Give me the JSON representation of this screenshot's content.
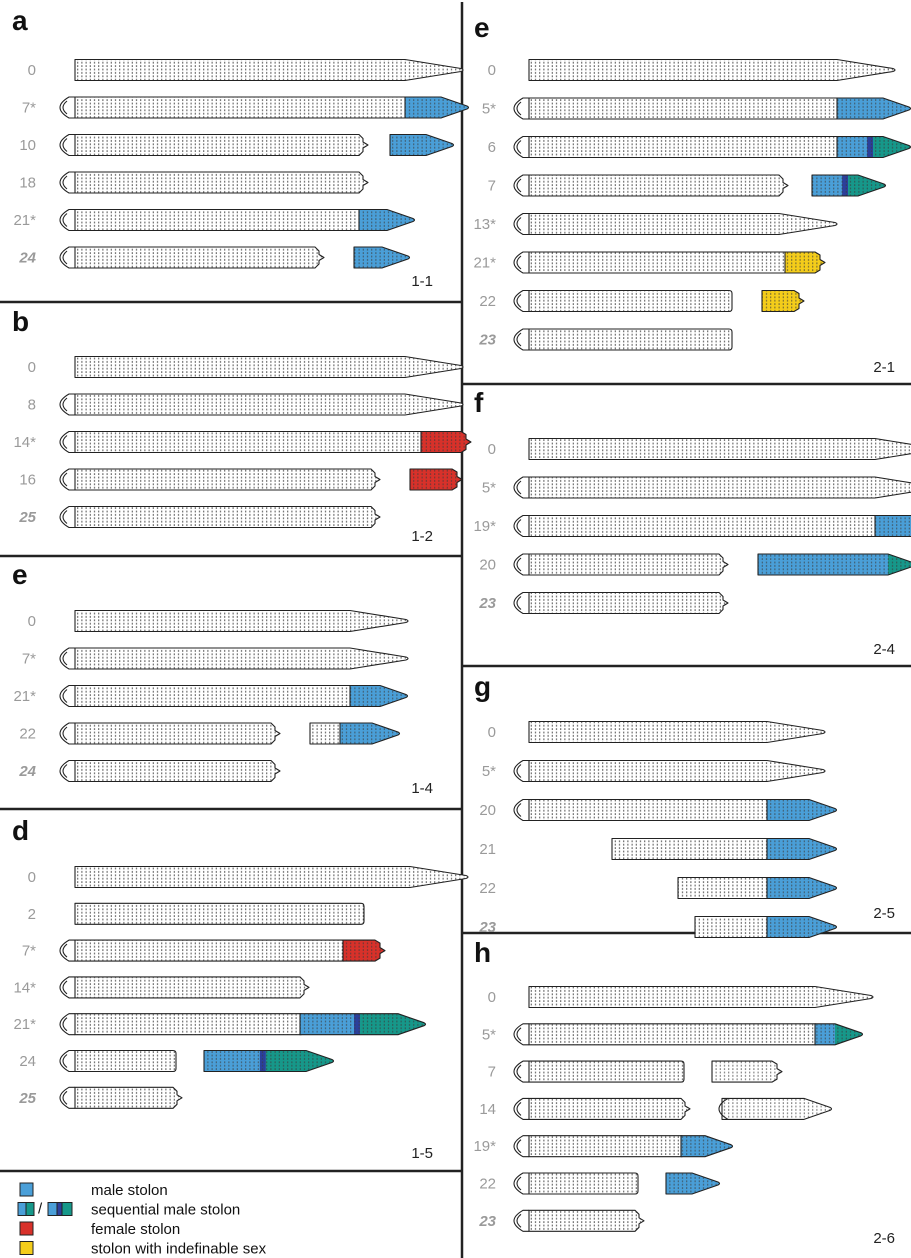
{
  "colors": {
    "male": "#4a9fd8",
    "male_dark": "#2b3f9b",
    "teal": "#16988a",
    "female": "#d8312a",
    "indefinable": "#f4cd1a",
    "outline": "#222222",
    "day_text": "#9a9a9a"
  },
  "panels": [
    {
      "letter": "a",
      "code": "1-1",
      "rows": [
        {
          "day": "0",
          "head": false,
          "body": 330,
          "tail": "taper",
          "stolon": null
        },
        {
          "day": "7*",
          "head": true,
          "body": 330,
          "tail": "taper",
          "stolon": {
            "attached": true,
            "len": 62,
            "color": "male"
          }
        },
        {
          "day": "10",
          "head": true,
          "body": 284,
          "tail": "notch",
          "stolon": {
            "attached": false,
            "gap": 22,
            "len": 62,
            "color": "male"
          }
        },
        {
          "day": "18",
          "head": true,
          "body": 284,
          "tail": "notch",
          "stolon": null
        },
        {
          "day": "21*",
          "head": true,
          "body": 284,
          "tail": "taper",
          "stolon": {
            "attached": true,
            "len": 54,
            "color": "male"
          }
        },
        {
          "day": "24",
          "last": true,
          "head": true,
          "body": 240,
          "tail": "notch",
          "stolon": {
            "attached": false,
            "gap": 30,
            "len": 54,
            "color": "male"
          }
        }
      ]
    },
    {
      "letter": "b",
      "code": "1-2",
      "rows": [
        {
          "day": "0",
          "head": false,
          "body": 330,
          "tail": "taper",
          "stolon": null
        },
        {
          "day": "8",
          "head": true,
          "body": 330,
          "tail": "taper",
          "stolon": null
        },
        {
          "day": "14*",
          "head": true,
          "body": 346,
          "tail": "taper",
          "stolon": {
            "attached": true,
            "len": 66,
            "color": "female"
          }
        },
        {
          "day": "16",
          "head": true,
          "body": 296,
          "tail": "notch",
          "stolon": {
            "attached": false,
            "gap": 30,
            "len": 68,
            "color": "female"
          }
        },
        {
          "day": "25",
          "last": true,
          "head": true,
          "body": 296,
          "tail": "notch",
          "stolon": null
        }
      ]
    },
    {
      "letter": "e",
      "code": "1-4",
      "rows": [
        {
          "day": "0",
          "head": false,
          "body": 275,
          "tail": "taper",
          "stolon": null
        },
        {
          "day": "7*",
          "head": true,
          "body": 275,
          "tail": "taper",
          "stolon": null
        },
        {
          "day": "21*",
          "head": true,
          "body": 275,
          "tail": "taper",
          "stolon": {
            "attached": true,
            "len": 56,
            "color": "male"
          }
        },
        {
          "day": "22",
          "head": true,
          "body": 196,
          "tail": "notch",
          "stolon": {
            "attached": false,
            "gap": 30,
            "pre": 30,
            "len": 58,
            "color": "male"
          }
        },
        {
          "day": "24",
          "last": true,
          "head": true,
          "body": 196,
          "tail": "notch",
          "stolon": null
        }
      ]
    },
    {
      "letter": "d",
      "code": "1-5",
      "rows": [
        {
          "day": "0",
          "head": false,
          "body": 335,
          "tail": "taper",
          "stolon": null
        },
        {
          "day": "2",
          "head": false,
          "body": 286,
          "tail": "flat",
          "stolon": null
        },
        {
          "day": "7*",
          "head": true,
          "body": 268,
          "tail": "flat",
          "stolon": {
            "attached": true,
            "len": 58,
            "color": "female"
          }
        },
        {
          "day": "14*",
          "head": true,
          "body": 225,
          "tail": "notch",
          "stolon": null
        },
        {
          "day": "21*",
          "head": true,
          "body": 225,
          "tail": "notch",
          "stolon": {
            "attached": true,
            "len": 124,
            "color": "seq_teal"
          }
        },
        {
          "day": "24",
          "head": true,
          "body": 98,
          "tail": "flat",
          "stolon": {
            "attached": false,
            "gap": 28,
            "len": 128,
            "color": "seq_teal"
          }
        },
        {
          "day": "25",
          "last": true,
          "head": true,
          "body": 98,
          "tail": "notch",
          "stolon": null
        }
      ]
    },
    {
      "letter": "e",
      "code": "2-1",
      "rows": [
        {
          "day": "0",
          "head": false,
          "body": 308,
          "tail": "taper",
          "stolon": null
        },
        {
          "day": "5*",
          "head": true,
          "body": 308,
          "tail": "taper",
          "stolon": {
            "attached": true,
            "len": 72,
            "color": "male"
          }
        },
        {
          "day": "6",
          "head": true,
          "body": 308,
          "tail": "taper",
          "stolon": {
            "attached": true,
            "len": 72,
            "color": "seq_teal"
          }
        },
        {
          "day": "7",
          "head": true,
          "body": 250,
          "tail": "notch",
          "stolon": {
            "attached": false,
            "gap": 24,
            "len": 72,
            "color": "seq_teal"
          }
        },
        {
          "day": "13*",
          "head": true,
          "body": 250,
          "tail": "taper",
          "stolon": null
        },
        {
          "day": "21*",
          "head": true,
          "body": 256,
          "tail": "notch",
          "stolon": {
            "attached": true,
            "len": 56,
            "color": "indefinable"
          }
        },
        {
          "day": "22",
          "head": true,
          "body": 200,
          "tail": "flat",
          "stolon": {
            "attached": false,
            "gap": 30,
            "len": 58,
            "color": "indefinable"
          }
        },
        {
          "day": "23",
          "last": true,
          "head": true,
          "body": 200,
          "tail": "flat",
          "stolon": null
        }
      ]
    },
    {
      "letter": "f",
      "code": "2-4",
      "rows": [
        {
          "day": "0",
          "head": false,
          "body": 346,
          "tail": "taper",
          "stolon": null
        },
        {
          "day": "5*",
          "head": true,
          "body": 346,
          "tail": "taper",
          "stolon": null
        },
        {
          "day": "19*",
          "head": true,
          "body": 346,
          "tail": "taper",
          "stolon": {
            "attached": true,
            "len": 156,
            "color": "male"
          }
        },
        {
          "day": "20",
          "head": true,
          "body": 190,
          "tail": "notch",
          "stolon": {
            "attached": false,
            "gap": 30,
            "len": 156,
            "color": "male_teal_tip"
          }
        },
        {
          "day": "23",
          "last": true,
          "head": true,
          "body": 190,
          "tail": "notch",
          "stolon": null
        }
      ]
    },
    {
      "letter": "g",
      "code": "2-5",
      "rows": [
        {
          "day": "0",
          "head": false,
          "body": 238,
          "tail": "taper",
          "stolon": null
        },
        {
          "day": "5*",
          "head": true,
          "body": 238,
          "tail": "taper",
          "stolon": null
        },
        {
          "day": "20",
          "head": true,
          "body": 238,
          "tail": "taper",
          "stolon": {
            "attached": true,
            "len": 68,
            "color": "male"
          }
        },
        {
          "day": "21",
          "head": false,
          "offset": 83,
          "body": 155,
          "tail": "taper",
          "stolon": {
            "attached": true,
            "len": 68,
            "color": "male"
          }
        },
        {
          "day": "22",
          "head": false,
          "offset": 149,
          "body": 89,
          "tail": "taper",
          "stolon": {
            "attached": true,
            "len": 68,
            "color": "male"
          }
        },
        {
          "day": "23",
          "last": true,
          "head": false,
          "offset": 166,
          "body": 72,
          "tail": "taper",
          "stolon": {
            "attached": true,
            "len": 68,
            "color": "male"
          }
        }
      ]
    },
    {
      "letter": "h",
      "code": "2-6",
      "rows": [
        {
          "day": "0",
          "head": false,
          "body": 286,
          "tail": "taper",
          "stolon": null
        },
        {
          "day": "5*",
          "head": true,
          "body": 286,
          "tail": "taper",
          "stolon": {
            "attached": true,
            "len": 46,
            "color": "male_teal_tip"
          }
        },
        {
          "day": "7",
          "head": true,
          "body": 152,
          "tail": "flat",
          "stolon": {
            "attached": false,
            "gap": 28,
            "len": 86,
            "color": "white_notch"
          }
        },
        {
          "day": "14",
          "head": true,
          "body": 152,
          "tail": "notch",
          "stolon": {
            "attached": false,
            "gap": 32,
            "len": 108,
            "color": "white_head"
          }
        },
        {
          "day": "19*",
          "head": true,
          "body": 152,
          "tail": "notch",
          "stolon": {
            "attached": true,
            "len": 50,
            "color": "male"
          }
        },
        {
          "day": "22",
          "head": true,
          "body": 106,
          "tail": "flat",
          "stolon": {
            "attached": false,
            "gap": 28,
            "len": 52,
            "color": "male"
          }
        },
        {
          "day": "23",
          "last": true,
          "head": true,
          "body": 106,
          "tail": "notch",
          "stolon": null
        }
      ]
    }
  ],
  "legend": [
    {
      "swatch": "male",
      "label": "male stolon"
    },
    {
      "swatch": "sequential",
      "separator": "/",
      "label": "sequential male stolon"
    },
    {
      "swatch": "female",
      "label": "female stolon"
    },
    {
      "swatch": "indefinable",
      "label": "stolon with indefinable sex"
    }
  ]
}
